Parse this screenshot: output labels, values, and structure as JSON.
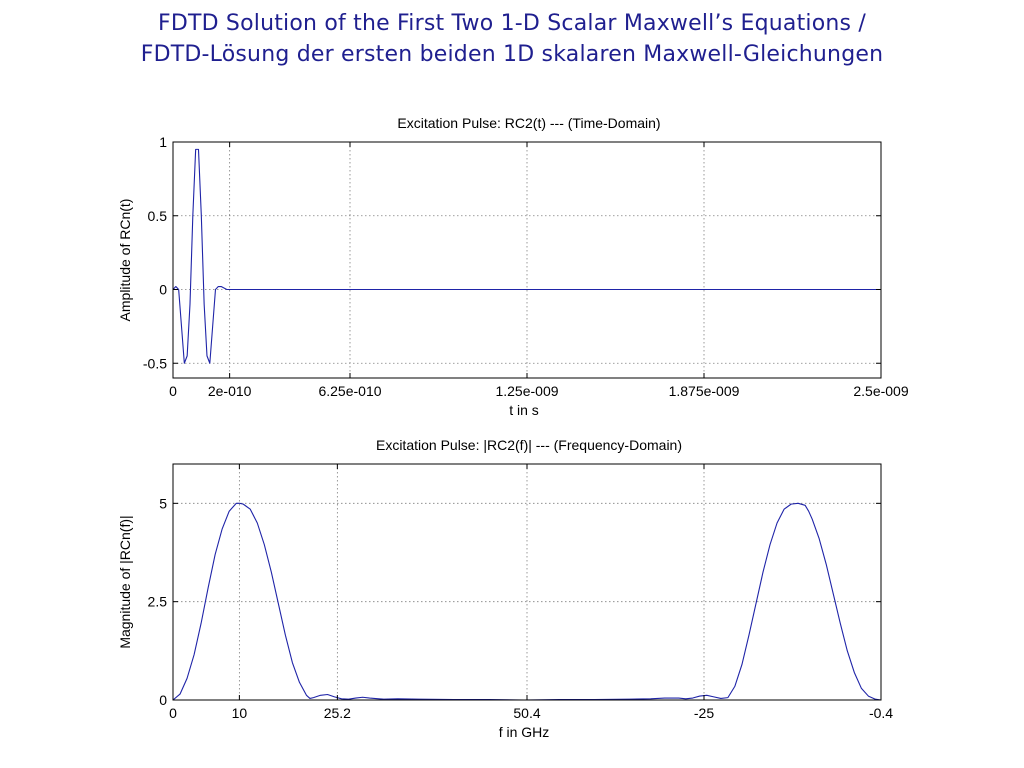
{
  "slide": {
    "title_line1": "FDTD Solution of the First Two 1-D Scalar Maxwell’s Equations /",
    "title_line2": "FDTD-Lösung der ersten beiden 1D skalaren Maxwell-Gleichungen"
  },
  "colors": {
    "line": "#1f24a8",
    "title": "#1f1f8f",
    "grid": "#808080"
  },
  "chart_data": [
    {
      "type": "line",
      "title": "Excitation Pulse: RC2(t) --- (Time-Domain)",
      "xlabel": "t in s",
      "ylabel": "Amplitude of RCn(t)",
      "xlim": [
        0,
        2.5e-09
      ],
      "ylim": [
        -0.6,
        1
      ],
      "grid": true,
      "xticks": [
        {
          "value": 0,
          "label": "0"
        },
        {
          "value": 2e-10,
          "label": "2e-010"
        },
        {
          "value": 6.25e-10,
          "label": "6.25e-010"
        },
        {
          "value": 1.25e-09,
          "label": "1.25e-009"
        },
        {
          "value": 1.875e-09,
          "label": "1.875e-009"
        },
        {
          "value": 2.5e-09,
          "label": "2.5e-009"
        }
      ],
      "yticks": [
        {
          "value": 1,
          "label": "1"
        },
        {
          "value": 0.5,
          "label": "0.5"
        },
        {
          "value": 0,
          "label": "0"
        },
        {
          "value": -0.5,
          "label": "-0.5"
        }
      ],
      "series": [
        {
          "x": [
            0,
            1e-11,
            2e-11,
            3e-11,
            4e-11,
            5e-11,
            6e-11,
            7e-11,
            8e-11,
            9e-11,
            1e-10,
            1.1e-10,
            1.2e-10,
            1.3e-10,
            1.4e-10,
            1.5e-10,
            1.6e-10,
            1.7e-10,
            1.8e-10,
            1.9e-10,
            2e-10,
            2.1e-10,
            2.5e-09
          ],
          "y": [
            0,
            0.02,
            0.0,
            -0.25,
            -0.5,
            -0.45,
            -0.1,
            0.5,
            0.95,
            0.95,
            0.5,
            -0.1,
            -0.45,
            -0.5,
            -0.25,
            0.0,
            0.02,
            0.02,
            0.01,
            0.0,
            0.0,
            0.0,
            0.0
          ]
        }
      ]
    },
    {
      "type": "line",
      "title": "Excitation Pulse: |RC2(f)| --- (Frequency-Domain)",
      "xlabel": "f in GHz",
      "ylabel": "Magnitude of |RCn(f)|",
      "xlim": [
        0,
        100.8
      ],
      "ylim": [
        0,
        6
      ],
      "grid": true,
      "xticks": [
        {
          "value": 0,
          "label": "0"
        },
        {
          "value": 9.45,
          "label": "10"
        },
        {
          "value": 23.4,
          "label": "25.2"
        },
        {
          "value": 50.4,
          "label": "50.4"
        },
        {
          "value": 75.6,
          "label": "-25"
        },
        {
          "value": 100.8,
          "label": "-0.4"
        }
      ],
      "yticks": [
        {
          "value": 5,
          "label": "5"
        },
        {
          "value": 2.5,
          "label": "2.5"
        },
        {
          "value": 0,
          "label": "0"
        }
      ],
      "series": [
        {
          "x": [
            0,
            1,
            2,
            3,
            4,
            5,
            6,
            7,
            8,
            9,
            9.5,
            10,
            11,
            12,
            13,
            14,
            15,
            16,
            17,
            18,
            19,
            19.5,
            20,
            21,
            22,
            23,
            24,
            25,
            26,
            27,
            28,
            30,
            32,
            35,
            40,
            45,
            50,
            55,
            60,
            65,
            68,
            70,
            72,
            73,
            74,
            75,
            76,
            77,
            78,
            79,
            80,
            81,
            82,
            83,
            84,
            85,
            86,
            87,
            88,
            89,
            90,
            90.5,
            91,
            92,
            93,
            94,
            95,
            96,
            97,
            98,
            99,
            100,
            100.8
          ],
          "y": [
            0,
            0.15,
            0.55,
            1.15,
            1.95,
            2.85,
            3.7,
            4.35,
            4.8,
            5.0,
            5.0,
            4.98,
            4.85,
            4.5,
            3.95,
            3.25,
            2.45,
            1.65,
            0.95,
            0.45,
            0.12,
            0.04,
            0.06,
            0.12,
            0.14,
            0.08,
            0.03,
            0.02,
            0.05,
            0.07,
            0.05,
            0.02,
            0.03,
            0.02,
            0.01,
            0.01,
            0.0,
            0.01,
            0.01,
            0.02,
            0.03,
            0.05,
            0.05,
            0.03,
            0.05,
            0.1,
            0.12,
            0.08,
            0.04,
            0.06,
            0.35,
            0.9,
            1.65,
            2.45,
            3.25,
            3.95,
            4.5,
            4.85,
            4.98,
            5.0,
            4.95,
            4.8,
            4.6,
            4.1,
            3.45,
            2.7,
            1.95,
            1.25,
            0.7,
            0.3,
            0.1,
            0.02,
            0
          ]
        }
      ]
    }
  ]
}
